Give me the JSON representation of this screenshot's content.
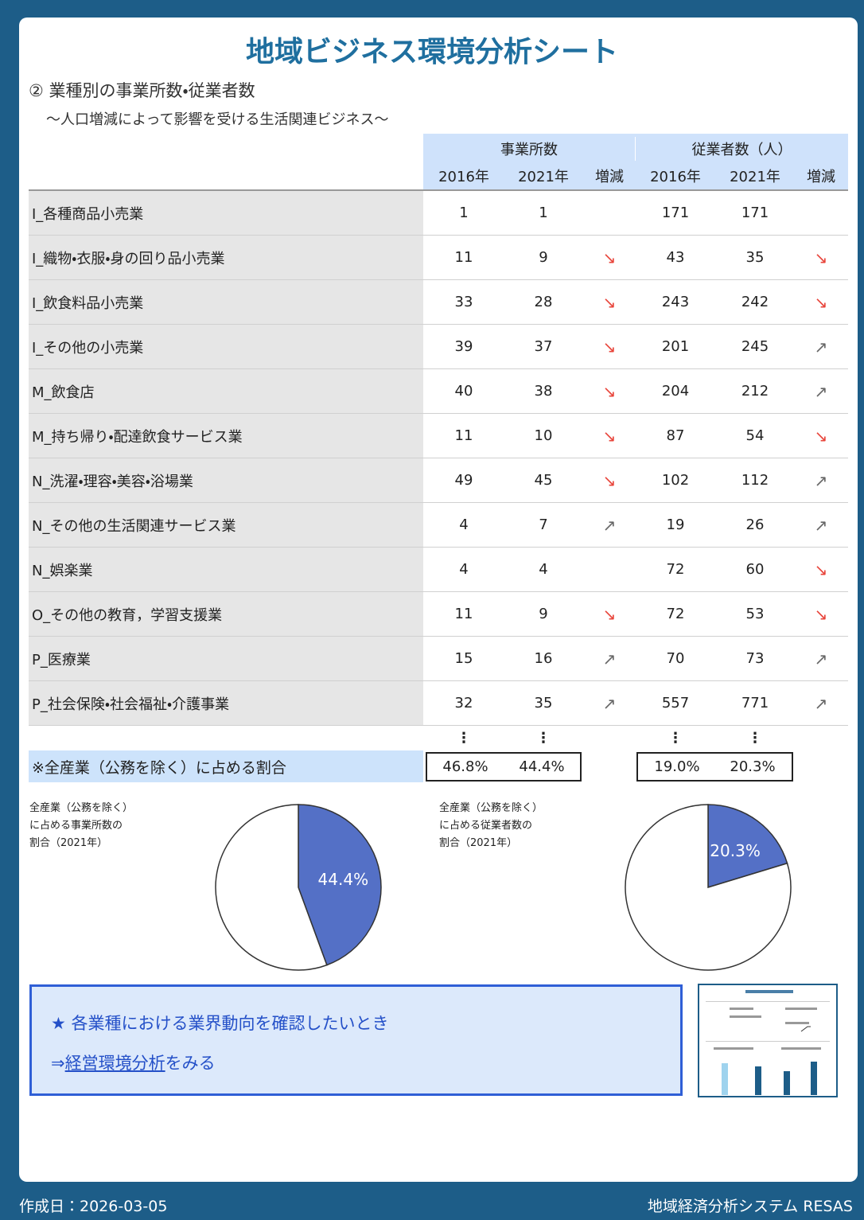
{
  "header": {
    "title": "地域ビジネス環境分析シート",
    "section": "② 業種別の事業所数・従業者数",
    "subtitle": "～人口増減によって影響を受ける生活関連ビジネス～"
  },
  "table": {
    "group_headers": [
      "事業所数",
      "従業者数（人）"
    ],
    "columns": [
      "2016年",
      "2021年",
      "増減",
      "2016年",
      "2021年",
      "増減"
    ],
    "trend_colors": {
      "↘": "#e8443a",
      "↗": "#666666"
    },
    "rows": [
      {
        "name": "I_各種商品小売業",
        "offices": [
          1,
          1
        ],
        "employees": [
          171,
          171
        ]
      },
      {
        "name": "I_織物・衣服・身の回り品小売業",
        "offices": [
          11,
          9
        ],
        "offices_trend": "↘",
        "employees": [
          43,
          35
        ],
        "employees_trend": "↘"
      },
      {
        "name": "I_飲食料品小売業",
        "offices": [
          33,
          28
        ],
        "offices_trend": "↘",
        "employees": [
          243,
          242
        ],
        "employees_trend": "↘"
      },
      {
        "name": "I_その他の小売業",
        "offices": [
          39,
          37
        ],
        "offices_trend": "↘",
        "employees": [
          201,
          245
        ],
        "employees_trend": "↗"
      },
      {
        "name": "M_飲食店",
        "offices": [
          40,
          38
        ],
        "offices_trend": "↘",
        "employees": [
          204,
          212
        ],
        "employees_trend": "↗"
      },
      {
        "name": "M_持ち帰り・配達飲食サービス業",
        "offices": [
          11,
          10
        ],
        "offices_trend": "↘",
        "employees": [
          87,
          54
        ],
        "employees_trend": "↘"
      },
      {
        "name": "N_洗濯・理容・美容・浴場業",
        "offices": [
          49,
          45
        ],
        "offices_trend": "↘",
        "employees": [
          102,
          112
        ],
        "employees_trend": "↗"
      },
      {
        "name": "N_その他の生活関連サービス業",
        "offices": [
          4,
          7
        ],
        "offices_trend": "↗",
        "employees": [
          19,
          26
        ],
        "employees_trend": "↗"
      },
      {
        "name": "N_娯楽業",
        "offices": [
          4,
          4
        ],
        "employees": [
          72,
          60
        ],
        "employees_trend": "↘"
      },
      {
        "name": "O_その他の教育，学習支援業",
        "offices": [
          11,
          9
        ],
        "offices_trend": "↘",
        "employees": [
          72,
          53
        ],
        "employees_trend": "↘"
      },
      {
        "name": "P_医療業",
        "offices": [
          15,
          16
        ],
        "offices_trend": "↗",
        "employees": [
          70,
          73
        ],
        "employees_trend": "↗"
      },
      {
        "name": "P_社会保険・社会福祉・介護事業",
        "offices": [
          32,
          35
        ],
        "offices_trend": "↗",
        "employees": [
          557,
          771
        ],
        "employees_trend": "↗"
      }
    ],
    "ellipsis": "⋮",
    "share": {
      "label": "※全産業（公務を除く）に占める割合",
      "offices": [
        "46.8%",
        "44.4%"
      ],
      "employees": [
        "19.0%",
        "20.3%"
      ]
    }
  },
  "chart_data": [
    {
      "type": "pie",
      "title": "全産業（公務を除く）\nに占める事業所数の\n割合（2021年）",
      "values": [
        44.4,
        55.6
      ],
      "value_labels": [
        "44.4%",
        null
      ],
      "colors": [
        "#5470c6",
        "#ffffff"
      ]
    },
    {
      "type": "pie",
      "title": "全産業（公務を除く）\nに占める従業者数の\n割合（2021年）",
      "values": [
        20.3,
        79.7
      ],
      "value_labels": [
        "20.3%",
        null
      ],
      "colors": [
        "#5470c6",
        "#ffffff"
      ]
    }
  ],
  "link": {
    "heading": "★ 各業種における業界動向を確認したいとき",
    "arrow": "⇒",
    "link_text": "経営環境分析",
    "suffix": "をみる"
  },
  "footer": {
    "date": "作成日：2026-03-05",
    "brand": "地域経済分析システム RESAS"
  }
}
